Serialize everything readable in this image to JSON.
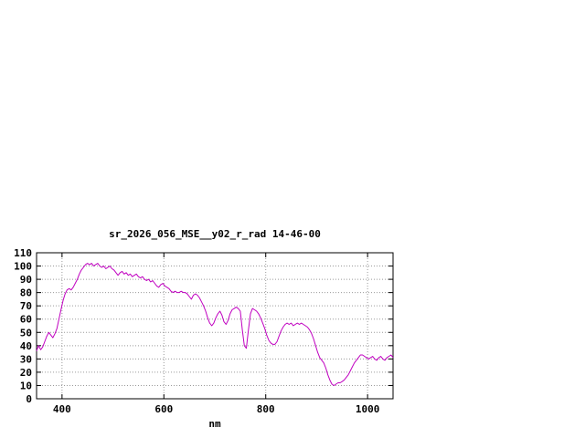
{
  "window": {
    "background": "#ffffff"
  },
  "chart_data": {
    "type": "line",
    "title": "sr_2026_056_MSE__y02_r_rad 14-46-00",
    "xlabel": "nm",
    "ylabel": "",
    "xlim": [
      350,
      1050
    ],
    "ylim": [
      0,
      110
    ],
    "xticks": [
      400,
      600,
      800,
      1000
    ],
    "yticks": [
      0,
      10,
      20,
      30,
      40,
      50,
      60,
      70,
      80,
      90,
      100,
      110
    ],
    "grid": true,
    "legend": "none",
    "line_color": "#c000c0",
    "grid_color": "#9a9a9a",
    "series": [
      {
        "name": "spectrum",
        "x": [
          350,
          354,
          358,
          362,
          366,
          370,
          374,
          378,
          382,
          386,
          390,
          394,
          398,
          402,
          406,
          410,
          414,
          418,
          422,
          426,
          430,
          434,
          438,
          442,
          446,
          450,
          454,
          458,
          462,
          466,
          470,
          474,
          478,
          482,
          486,
          490,
          494,
          498,
          502,
          506,
          510,
          514,
          518,
          522,
          526,
          530,
          534,
          538,
          542,
          546,
          550,
          554,
          558,
          562,
          566,
          570,
          574,
          578,
          582,
          586,
          590,
          594,
          598,
          602,
          606,
          610,
          614,
          618,
          622,
          626,
          630,
          634,
          638,
          642,
          646,
          650,
          654,
          658,
          662,
          666,
          670,
          674,
          678,
          682,
          686,
          690,
          694,
          698,
          702,
          706,
          710,
          714,
          718,
          722,
          726,
          730,
          734,
          738,
          742,
          746,
          750,
          754,
          758,
          762,
          766,
          770,
          774,
          778,
          782,
          786,
          790,
          794,
          798,
          802,
          806,
          810,
          814,
          818,
          822,
          826,
          830,
          834,
          838,
          842,
          846,
          850,
          854,
          858,
          862,
          866,
          870,
          874,
          878,
          882,
          886,
          890,
          894,
          898,
          902,
          906,
          910,
          914,
          918,
          922,
          926,
          930,
          934,
          938,
          942,
          946,
          950,
          954,
          958,
          962,
          966,
          970,
          974,
          978,
          982,
          986,
          990,
          994,
          998,
          1002,
          1006,
          1010,
          1014,
          1018,
          1022,
          1026,
          1030,
          1034,
          1038,
          1042,
          1046,
          1050
        ],
        "y": [
          36,
          40,
          37,
          39,
          43,
          47,
          50,
          48,
          46,
          49,
          53,
          60,
          67,
          74,
          79,
          82,
          83,
          82,
          84,
          87,
          90,
          94,
          97,
          99,
          101,
          102,
          101,
          102,
          100,
          101,
          102,
          100,
          99,
          100,
          98,
          99,
          100,
          98,
          97,
          95,
          93,
          95,
          96,
          94,
          95,
          93,
          94,
          92,
          93,
          94,
          92,
          91,
          92,
          90,
          89,
          90,
          88,
          89,
          87,
          85,
          84,
          86,
          87,
          85,
          84,
          83,
          81,
          80,
          81,
          80,
          80,
          81,
          80,
          80,
          79,
          77,
          75,
          78,
          79,
          78,
          76,
          73,
          70,
          66,
          61,
          57,
          55,
          57,
          61,
          64,
          66,
          63,
          58,
          56,
          59,
          64,
          67,
          68,
          69,
          68,
          66,
          52,
          40,
          38,
          52,
          64,
          68,
          67,
          66,
          64,
          61,
          57,
          53,
          48,
          44,
          42,
          41,
          41,
          43,
          47,
          51,
          54,
          56,
          57,
          56,
          57,
          55,
          56,
          57,
          56,
          57,
          56,
          55,
          54,
          52,
          49,
          45,
          40,
          35,
          31,
          29,
          27,
          23,
          18,
          14,
          11,
          10,
          11,
          12,
          12,
          13,
          14,
          16,
          18,
          21,
          24,
          27,
          29,
          31,
          33,
          33,
          32,
          31,
          30,
          31,
          32,
          30,
          29,
          31,
          32,
          30,
          29,
          31,
          32,
          33,
          31
        ]
      }
    ]
  }
}
